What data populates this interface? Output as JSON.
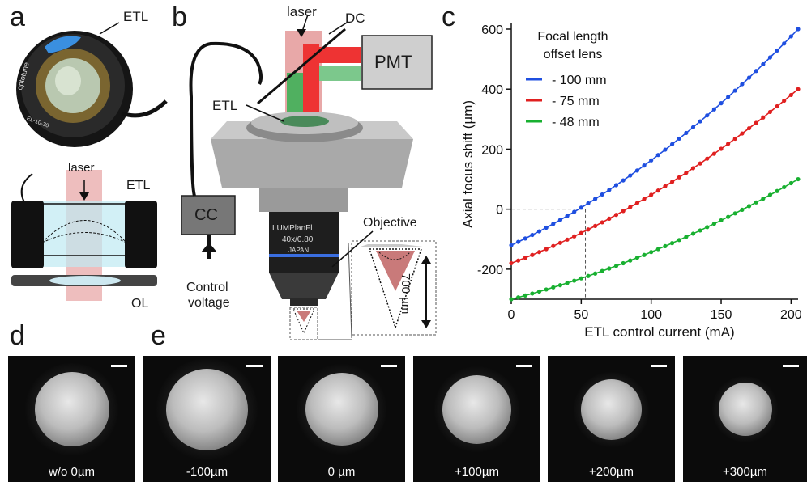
{
  "panels": {
    "a": "a",
    "b": "b",
    "c": "c",
    "d": "d",
    "e": "e"
  },
  "panel_a": {
    "etl_top": "ETL",
    "laser": "laser",
    "etl_bottom": "ETL",
    "ol": "OL",
    "lens_brand": "optotune",
    "lens_model": "EL-10-30"
  },
  "panel_b": {
    "laser": "laser",
    "dc": "DC",
    "pmt": "PMT",
    "etl": "ETL",
    "cc": "CC",
    "control_voltage_1": "Control",
    "control_voltage_2": "voltage",
    "objective": "Objective",
    "distance": "700 µm",
    "obj_brand": "LUMPlanFl",
    "obj_mag": "40x/0.80",
    "obj_origin": "JAPAN"
  },
  "chart_data": {
    "type": "line",
    "title": "",
    "xlabel": "ETL control current (mA)",
    "ylabel": "Axial focus shift (µm)",
    "xlim": [
      0,
      205
    ],
    "ylim": [
      -300,
      600
    ],
    "xticks": [
      0,
      50,
      100,
      150,
      200
    ],
    "yticks": [
      -200,
      0,
      200,
      400,
      600
    ],
    "legend_title_1": "Focal length",
    "legend_title_2": "offset lens",
    "legend_position": "top-left",
    "grid": false,
    "guide": {
      "x": 53,
      "y": 0
    },
    "series": [
      {
        "name": "- 100 mm",
        "color": "#1f4fe0",
        "y0": -120,
        "y205": 600
      },
      {
        "name": "- 75 mm",
        "color": "#e02020",
        "y0": -180,
        "y205": 400
      },
      {
        "name": "- 48 mm",
        "color": "#18b030",
        "y0": -300,
        "y205": 100
      }
    ]
  },
  "images": [
    {
      "label": "w/o 0µm",
      "size": 1.0
    },
    {
      "label": "-100µm",
      "size": 1.1
    },
    {
      "label": "0 µm",
      "size": 0.98
    },
    {
      "label": "+100µm",
      "size": 0.92
    },
    {
      "label": "+200µm",
      "size": 0.82
    },
    {
      "label": "+300µm",
      "size": 0.72
    }
  ]
}
